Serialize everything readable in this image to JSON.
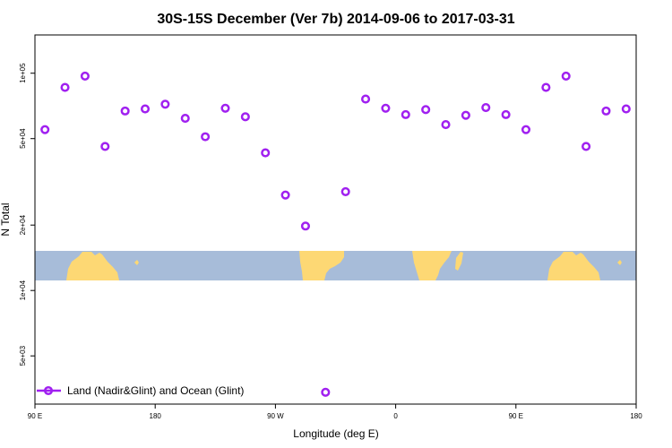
{
  "chart_data": {
    "type": "scatter",
    "title": "30S-15S December (Ver 7b)   2014-09-06 to 2017-03-31",
    "xlabel": "Longitude (deg E)",
    "ylabel": "N Total",
    "xlim": [
      90,
      540
    ],
    "ylim_log": [
      3000,
      150000
    ],
    "x_ticks": [
      {
        "value": 90,
        "label": "90 E"
      },
      {
        "value": 180,
        "label": "180"
      },
      {
        "value": 270,
        "label": "90 W"
      },
      {
        "value": 360,
        "label": "0"
      },
      {
        "value": 450,
        "label": "90 E"
      },
      {
        "value": 540,
        "label": "180"
      }
    ],
    "y_ticks": [
      {
        "value": 5000,
        "label": "5e+03"
      },
      {
        "value": 10000,
        "label": "1e+04"
      },
      {
        "value": 20000,
        "label": "2e+04"
      },
      {
        "value": 50000,
        "label": "5e+04"
      },
      {
        "value": 100000,
        "label": "1e+05"
      }
    ],
    "series": [
      {
        "name": "Land (Nadir&Glint) and Ocean (Glint)",
        "color": "#a020f0",
        "marker": "open-circle",
        "x": [
          97.5,
          112.5,
          127.5,
          142.5,
          157.5,
          172.5,
          187.5,
          202.5,
          217.5,
          232.5,
          247.5,
          262.5,
          277.5,
          292.5,
          307.5,
          322.5,
          337.5,
          352.5,
          367.5,
          382.5,
          397.5,
          412.5,
          427.5,
          442.5,
          457.5,
          472.5,
          487.5,
          502.5,
          517.5,
          532.5
        ],
        "y": [
          55000,
          86000,
          97000,
          46000,
          67000,
          68500,
          72000,
          62000,
          51000,
          69000,
          63000,
          43000,
          27500,
          19800,
          3400,
          28500,
          76000,
          69000,
          64500,
          68000,
          58000,
          64000,
          69500,
          64500,
          55000,
          86000,
          97000,
          46000,
          67000,
          68500
        ]
      }
    ],
    "legend": {
      "position": "bottom-left",
      "label": "Land (Nadir&Glint) and Ocean (Glint)"
    },
    "map_band": {
      "ocean_color": "#a7bcd9",
      "land_color": "#fdd874"
    }
  }
}
